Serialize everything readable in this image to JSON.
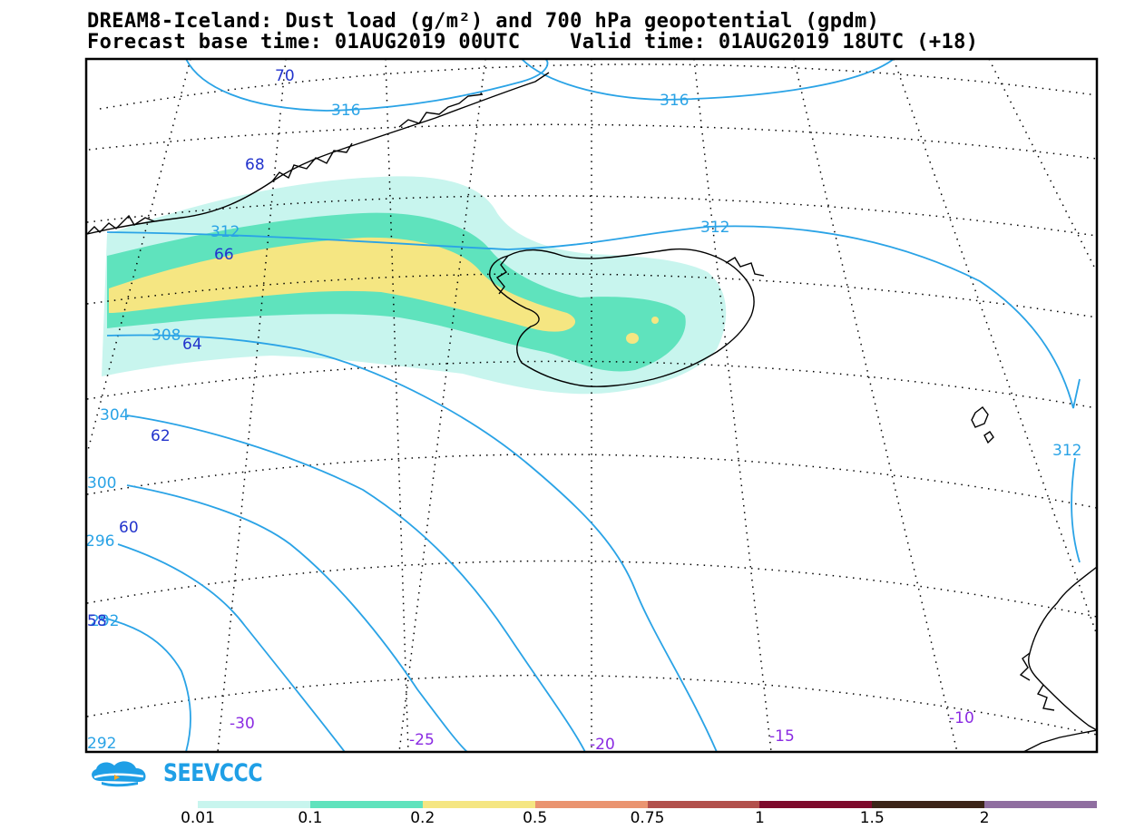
{
  "title": {
    "line1": "DREAM8-Iceland: Dust load (g/m²) and 700 hPa geopotential (gpdm)",
    "line2": "Forecast base time: 01AUG2019 00UTC    Valid time: 01AUG2019 18UTC (+18)"
  },
  "geopotential_labels": [
    "316",
    "316",
    "312",
    "312",
    "308",
    "304",
    "300",
    "296",
    "292",
    "292",
    "312"
  ],
  "latitude_labels": [
    "70",
    "68",
    "66",
    "64",
    "62",
    "60",
    "58"
  ],
  "longitude_labels": [
    "-30",
    "-25",
    "-20",
    "-15",
    "-10"
  ],
  "logo": {
    "text": "SEEVCCC",
    "icon": "cloud-logo-icon"
  },
  "legend": {
    "colors": [
      "#c8f5ee",
      "#5fe3bd",
      "#f5e682",
      "#ea9470",
      "#b2504c",
      "#7e0a2c",
      "#3b2417",
      "#8f6ea0"
    ],
    "labels": [
      "0.01",
      "0.1",
      "0.2",
      "0.5",
      "0.75",
      "1",
      "1.5",
      "2"
    ]
  },
  "colors": {
    "geopotential_contour": "#2aa3e6",
    "coastline": "#000000",
    "dust_0.01": "#c8f5ee",
    "dust_0.1": "#5fe3bd",
    "dust_0.2": "#f5e682"
  }
}
